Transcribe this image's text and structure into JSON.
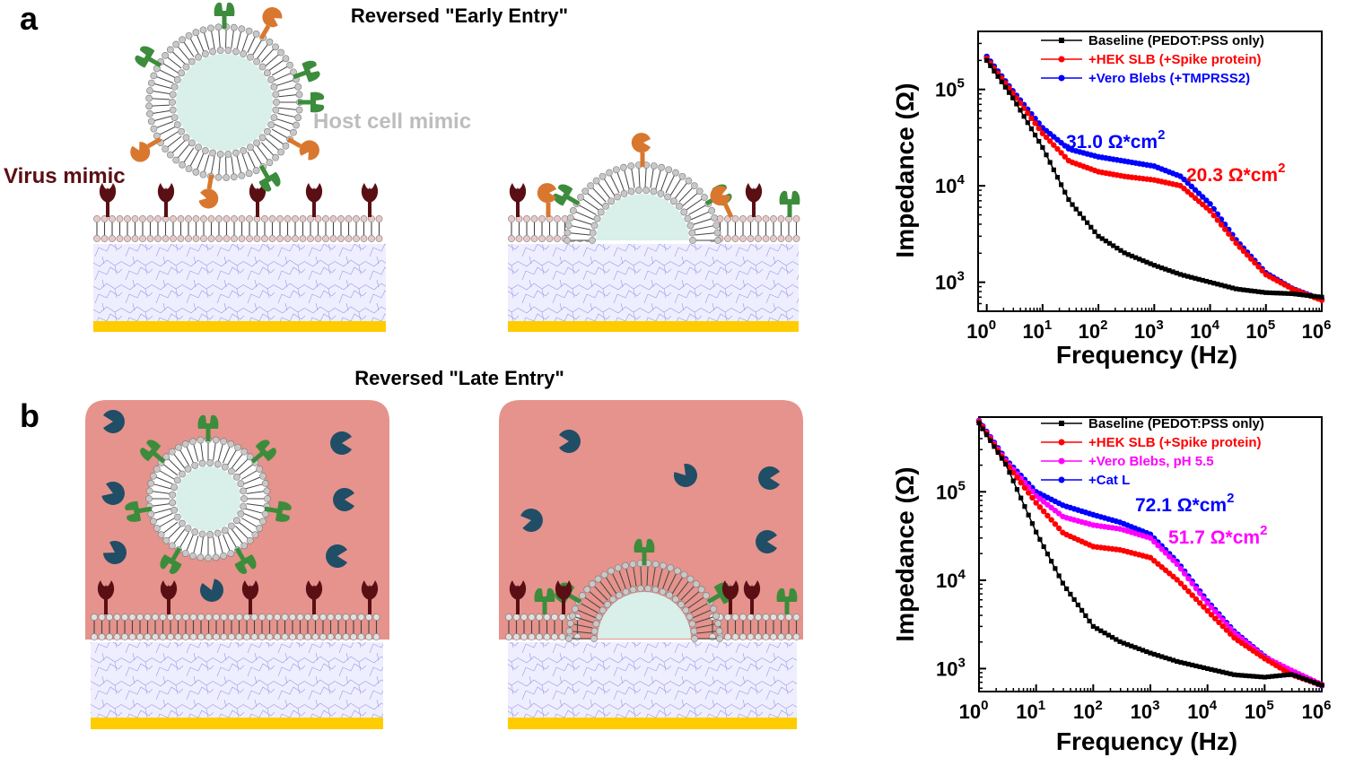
{
  "panels": {
    "a": {
      "label": "a",
      "title": "Reversed \"Early Entry\"",
      "virus_label": "Virus mimic",
      "host_label": "Host cell mimic"
    },
    "b": {
      "label": "b",
      "title": "Reversed \"Late Entry\""
    }
  },
  "colors": {
    "virus_protein": "#5a0f14",
    "green_receptor": "#3c8c3c",
    "orange_protease": "#d9772e",
    "cathepsin": "#1f4e66",
    "acidic_medium": "#e5938c",
    "lipid_head": "#c8c8c8",
    "hydrogel": "#eeeeff",
    "gold_electrode": "#ffcc00",
    "vesicle_lumen": "#d9efea"
  },
  "chart_data": [
    {
      "type": "line",
      "panel": "a",
      "xlabel": "Frequency (Hz)",
      "ylabel": "Impedance (Ω)",
      "xscale": "log",
      "yscale": "log",
      "xlim": [
        0.7,
        1000000
      ],
      "ylim": [
        500,
        400000
      ],
      "x_ticks": [
        "0",
        "1",
        "2",
        "3",
        "4",
        "5",
        "6"
      ],
      "y_ticks": [
        "3",
        "4",
        "5"
      ],
      "grid": false,
      "legend_position": "top-right",
      "x": [
        1,
        3,
        10,
        30,
        100,
        300,
        1000,
        3000,
        10000,
        30000,
        100000,
        300000,
        1000000
      ],
      "series": [
        {
          "name": "Baseline (PEDOT:PSS only)",
          "color": "#000000",
          "marker": "square",
          "values": [
            200000,
            80000,
            25000,
            7000,
            3000,
            2000,
            1500,
            1200,
            1000,
            850,
            780,
            760,
            700
          ]
        },
        {
          "name": "+HEK SLB (+Spike protein)",
          "color": "#ff0000",
          "marker": "circle",
          "values": [
            210000,
            90000,
            35000,
            18000,
            14000,
            12500,
            11500,
            10000,
            5500,
            2500,
            1200,
            850,
            650
          ]
        },
        {
          "name": "+Vero Blebs (+TMPRSS2)",
          "color": "#0000ff",
          "marker": "circle",
          "values": [
            220000,
            95000,
            40000,
            24000,
            20000,
            18000,
            16000,
            12500,
            6500,
            2700,
            1250,
            860,
            660
          ]
        }
      ],
      "annotations": [
        {
          "text_main": "31.0 Ω*cm",
          "sup": "2",
          "color": "#0000ff"
        },
        {
          "text_main": "20.3 Ω*cm",
          "sup": "2",
          "color": "#ff0000"
        }
      ]
    },
    {
      "type": "line",
      "panel": "b",
      "xlabel": "Frequency (Hz)",
      "ylabel": "Impedance (Ω)",
      "xscale": "log",
      "yscale": "log",
      "xlim": [
        1,
        1000000
      ],
      "ylim": [
        550,
        700000
      ],
      "x_ticks": [
        "0",
        "1",
        "2",
        "3",
        "4",
        "5",
        "6"
      ],
      "y_ticks": [
        "3",
        "4",
        "5"
      ],
      "grid": false,
      "legend_position": "top-right",
      "x": [
        1,
        3,
        10,
        30,
        100,
        300,
        1000,
        3000,
        10000,
        30000,
        100000,
        300000,
        1000000
      ],
      "series": [
        {
          "name": "Baseline (PEDOT:PSS only)",
          "color": "#000000",
          "marker": "square",
          "values": [
            600000,
            200000,
            35000,
            9000,
            3000,
            2000,
            1500,
            1200,
            1000,
            850,
            800,
            860,
            650
          ]
        },
        {
          "name": "+HEK SLB (+Spike protein)",
          "color": "#ff0000",
          "marker": "circle",
          "values": [
            620000,
            210000,
            75000,
            34000,
            24000,
            22000,
            18000,
            10000,
            4500,
            2200,
            1300,
            850,
            650
          ]
        },
        {
          "name": "+Vero Blebs, pH 5.5",
          "color": "#ff00ff",
          "marker": "circle",
          "values": [
            630000,
            220000,
            90000,
            52000,
            42000,
            38000,
            30000,
            15000,
            5500,
            2500,
            1350,
            950,
            660
          ]
        },
        {
          "name": "+Cat L",
          "color": "#0000ff",
          "marker": "circle",
          "values": [
            640000,
            230000,
            100000,
            70000,
            55000,
            45000,
            33000,
            16000,
            5800,
            2600,
            1380,
            870,
            640
          ]
        }
      ],
      "annotations": [
        {
          "text_main": "72.1 Ω*cm",
          "sup": "2",
          "color": "#0000ff"
        },
        {
          "text_main": "51.7 Ω*cm",
          "sup": "2",
          "color": "#ff00ff"
        }
      ]
    }
  ]
}
